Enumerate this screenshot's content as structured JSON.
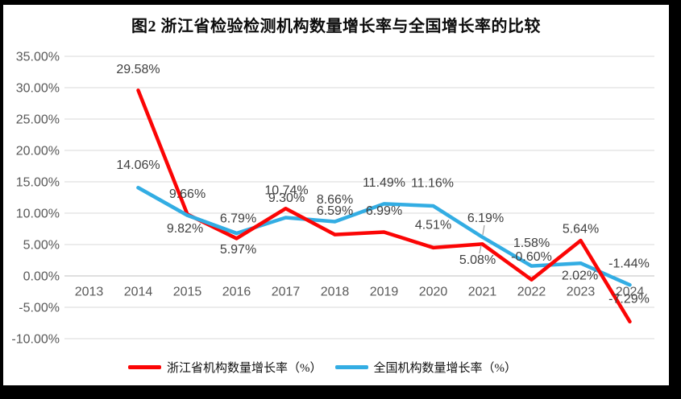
{
  "chart_data": {
    "type": "line",
    "title": "图2  浙江省检验检测机构数量增长率与全国增长率的比较",
    "categories": [
      "2013",
      "2014",
      "2015",
      "2016",
      "2017",
      "2018",
      "2019",
      "2020",
      "2021",
      "2022",
      "2023",
      "2024"
    ],
    "series": [
      {
        "name": "浙江省机构数量增长率（%）",
        "color": "#fb0505",
        "values": [
          null,
          29.58,
          9.82,
          5.97,
          10.74,
          6.59,
          6.99,
          4.51,
          5.08,
          -0.6,
          5.64,
          -7.29
        ],
        "labels": [
          "",
          "29.58%",
          "9.82%",
          "5.97%",
          "10.74%",
          "6.59%",
          "6.99%",
          "4.51%",
          "5.08%",
          "-0.60%",
          "5.64%",
          "-7.29%"
        ]
      },
      {
        "name": "全国机构数量增长率（%）",
        "color": "#33ade3",
        "values": [
          null,
          14.06,
          9.66,
          6.79,
          9.3,
          8.66,
          11.49,
          11.16,
          6.19,
          1.58,
          2.02,
          -1.44
        ],
        "labels": [
          "",
          "14.06%",
          "9.66%",
          "6.79%",
          "9.30%",
          "8.66%",
          "11.49%",
          "11.16%",
          "6.19%",
          "1.58%",
          "2.02%",
          "-1.44%"
        ]
      }
    ],
    "y_axis": {
      "min": -10,
      "max": 35,
      "step": 5,
      "tick_labels": [
        "35.00%",
        "30.00%",
        "25.00%",
        "20.00%",
        "15.00%",
        "10.00%",
        "5.00%",
        "0.00%",
        "-5.00%",
        "-10.00%"
      ]
    },
    "grid": true,
    "legend_position": "bottom",
    "data_labels": true
  },
  "colors": {
    "background": "#ffffff",
    "frame": "#000000",
    "gridline": "#d9d9d9",
    "zero_axis": "#bfbfbf",
    "axis_text": "#595959",
    "label_text": "#3f3f3f",
    "leader_line": "#9e9e9e"
  }
}
